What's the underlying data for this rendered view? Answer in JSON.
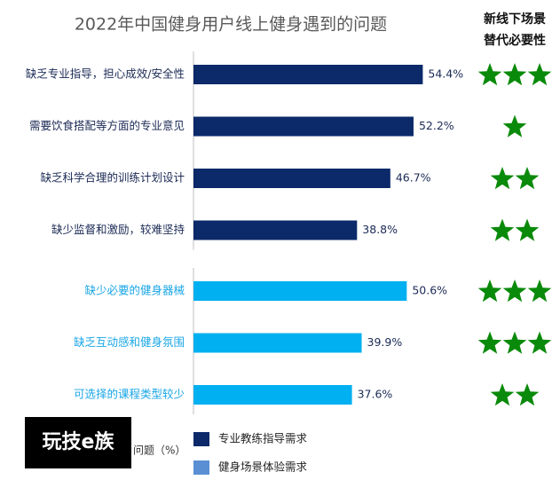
{
  "chart_data": {
    "type": "bar",
    "orientation": "horizontal",
    "title": "2022年中国健身用户线上健身遇到的问题",
    "stars_title": [
      "新线下场景",
      "替代必要性"
    ],
    "axis_label": "问题（%）",
    "watermark": "玩技e族",
    "star_color": "#0a8a0a",
    "series": [
      {
        "name": "专业教练指导需求",
        "color": "#0c2a6a",
        "legend_color": "#0c2a6a",
        "label_color": "#1b2a55",
        "categories": [
          "缺乏专业指导，担心成效/安全性",
          "需要饮食搭配等方面的专业意见",
          "缺乏科学合理的训练计划设计",
          "缺少监督和激励，较难坚持"
        ],
        "values": [
          54.4,
          52.2,
          46.7,
          38.8
        ],
        "value_labels": [
          "54.4%",
          "52.2%",
          "46.7%",
          "38.8%"
        ],
        "stars": [
          3,
          1,
          2,
          2
        ]
      },
      {
        "name": "健身场景体验需求",
        "color": "#00b0f0",
        "legend_color": "#5a8fd4",
        "label_color": "#1aa6e6",
        "categories": [
          "缺少必要的健身器械",
          "缺乏互动感和健身氛围",
          "可选择的课程类型较少"
        ],
        "values": [
          50.6,
          39.9,
          37.6
        ],
        "value_labels": [
          "50.6%",
          "39.9%",
          "37.6%"
        ],
        "stars": [
          3,
          3,
          2
        ]
      }
    ]
  }
}
